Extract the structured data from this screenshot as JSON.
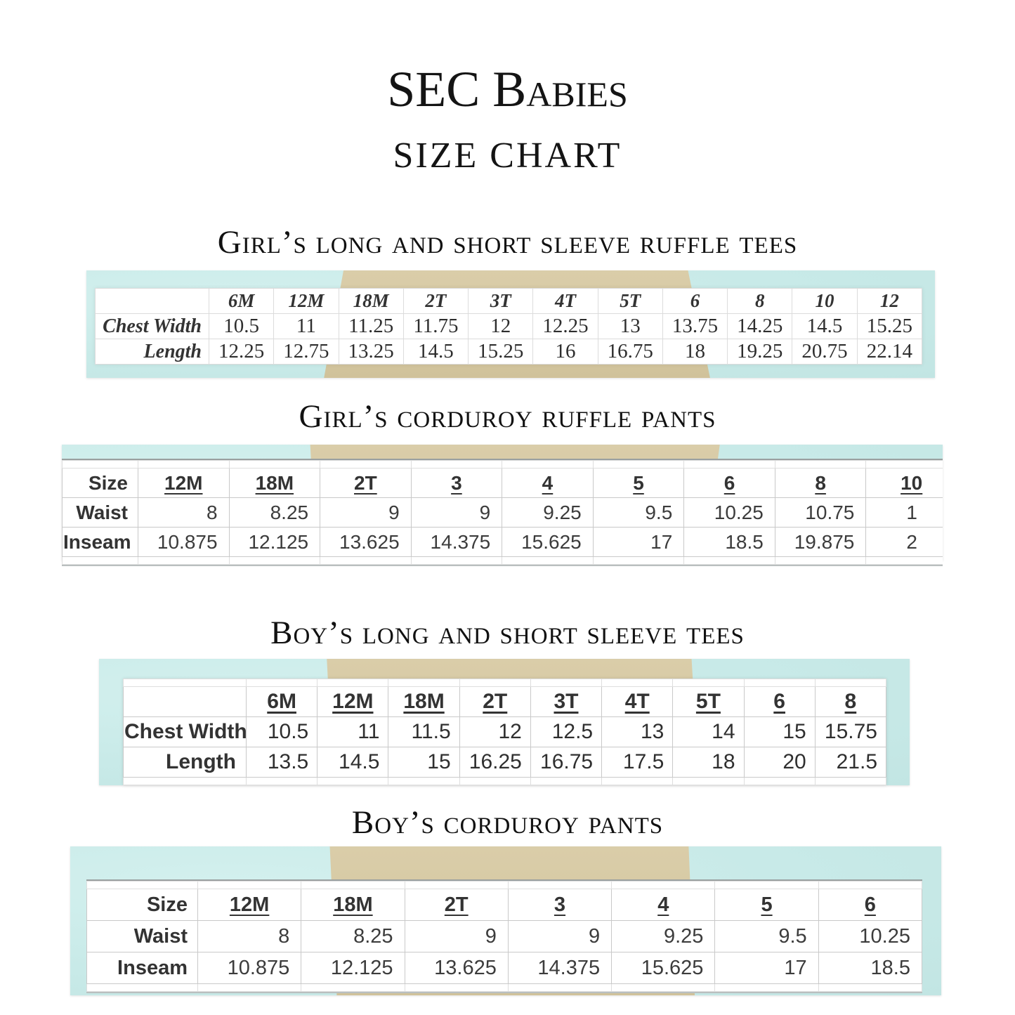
{
  "page": {
    "title": "SEC Babies",
    "subtitle": "SIZE CHART"
  },
  "colors": {
    "band_blue": "#c8eae8",
    "band_tan": "#d5c8a1",
    "table_background": "#ffffff",
    "table_border": "#c9c9c9",
    "text": "#2e2e2e"
  },
  "sections": [
    {
      "heading": "Girl’s long and short sleeve ruffle tees",
      "table": {
        "style": "handwritten",
        "corner_label": "",
        "sizes": [
          "6M",
          "12M",
          "18M",
          "2T",
          "3T",
          "4T",
          "5T",
          "6",
          "8",
          "10",
          "12"
        ],
        "rows": [
          {
            "label": "Chest Width",
            "values": [
              "10.5",
              "11",
              "11.25",
              "11.75",
              "12",
              "12.25",
              "13",
              "13.75",
              "14.25",
              "14.5",
              "15.25"
            ]
          },
          {
            "label": "Length",
            "values": [
              "12.25",
              "12.75",
              "13.25",
              "14.5",
              "15.25",
              "16",
              "16.75",
              "18",
              "19.25",
              "20.75",
              "22.14"
            ]
          }
        ]
      }
    },
    {
      "heading": "Girl’s corduroy ruffle pants",
      "table": {
        "style": "spreadsheet",
        "corner_label": "Size",
        "sizes": [
          "12M",
          "18M",
          "2T",
          "3",
          "4",
          "5",
          "6",
          "8",
          "10"
        ],
        "rows": [
          {
            "label": "Waist",
            "values": [
              "8",
              "8.25",
              "9",
              "9",
              "9.25",
              "9.5",
              "10.25",
              "10.75",
              "1"
            ]
          },
          {
            "label": "Inseam",
            "values": [
              "10.875",
              "12.125",
              "13.625",
              "14.375",
              "15.625",
              "17",
              "18.5",
              "19.875",
              "2"
            ]
          }
        ]
      }
    },
    {
      "heading": "Boy’s long and short sleeve tees",
      "table": {
        "style": "spreadsheet",
        "corner_label": "",
        "sizes": [
          "6M",
          "12M",
          "18M",
          "2T",
          "3T",
          "4T",
          "5T",
          "6",
          "8"
        ],
        "rows": [
          {
            "label": "Chest Width",
            "values": [
              "10.5",
              "11",
              "11.5",
              "12",
              "12.5",
              "13",
              "14",
              "15",
              "15.75"
            ]
          },
          {
            "label": "Length",
            "values": [
              "13.5",
              "14.5",
              "15",
              "16.25",
              "16.75",
              "17.5",
              "18",
              "20",
              "21.5"
            ]
          }
        ]
      }
    },
    {
      "heading": "Boy’s corduroy pants",
      "table": {
        "style": "spreadsheet",
        "corner_label": "Size",
        "sizes": [
          "12M",
          "18M",
          "2T",
          "3",
          "4",
          "5",
          "6"
        ],
        "rows": [
          {
            "label": "Waist",
            "values": [
              "8",
              "8.25",
              "9",
              "9",
              "9.25",
              "9.5",
              "10.25"
            ]
          },
          {
            "label": "Inseam",
            "values": [
              "10.875",
              "12.125",
              "13.625",
              "14.375",
              "15.625",
              "17",
              "18.5"
            ]
          }
        ]
      }
    }
  ]
}
